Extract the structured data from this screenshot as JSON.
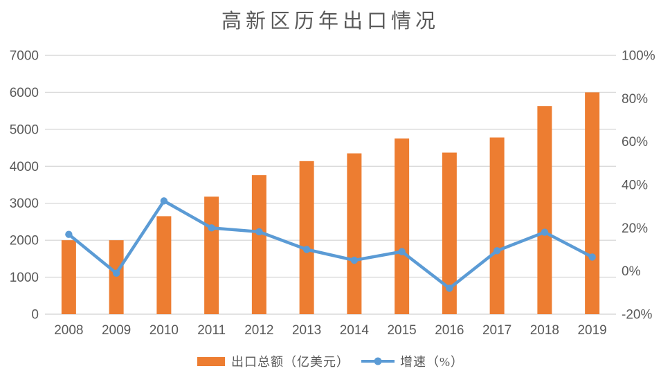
{
  "title": "高新区历年出口情况",
  "colors": {
    "bar": "#ED7D31",
    "line": "#5B9BD5",
    "grid": "#DADADA",
    "axis_text": "#595959",
    "title_text": "#595959",
    "legend_text": "#595959",
    "background": "#FFFFFF"
  },
  "legend": {
    "bar": {
      "label": "出口总额（亿美元）"
    },
    "line": {
      "label": "增速（%）"
    }
  },
  "chart_data": {
    "type": "bar+line combo",
    "title": "高新区历年出口情况",
    "categories": [
      "2008",
      "2009",
      "2010",
      "2011",
      "2012",
      "2013",
      "2014",
      "2015",
      "2016",
      "2017",
      "2018",
      "2019"
    ],
    "series": [
      {
        "name": "出口总额（亿美元）",
        "type": "bar",
        "axis": "left",
        "color": "#ED7D31",
        "values": [
          2000,
          2000,
          2650,
          3180,
          3760,
          4140,
          4350,
          4750,
          4370,
          4780,
          5630,
          6000
        ]
      },
      {
        "name": "增速（%）",
        "type": "line",
        "axis": "right",
        "color": "#5B9BD5",
        "values": [
          17,
          -1,
          32.5,
          20,
          18.2,
          10,
          5,
          9,
          -8,
          9.4,
          18,
          6.5
        ]
      }
    ],
    "left_axis": {
      "min": 0,
      "max": 7000,
      "step": 1000,
      "tick_labels": [
        "0",
        "1000",
        "2000",
        "3000",
        "4000",
        "5000",
        "6000",
        "7000"
      ]
    },
    "right_axis": {
      "min": -20,
      "max": 100,
      "step": 20,
      "tick_labels": [
        "-20%",
        "0%",
        "20%",
        "40%",
        "60%",
        "80%",
        "100%"
      ]
    },
    "grid": true,
    "legend_position": "bottom"
  }
}
